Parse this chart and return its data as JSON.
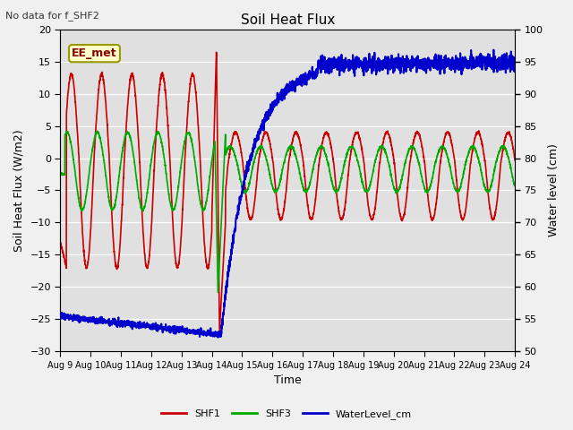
{
  "title": "Soil Heat Flux",
  "top_left_note": "No data for f_SHF2",
  "ylabel_left": "Soil Heat Flux (W/m2)",
  "ylabel_right": "Water level (cm)",
  "xlabel": "Time",
  "ylim_left": [
    -30,
    20
  ],
  "ylim_right": [
    50,
    100
  ],
  "x_tick_labels": [
    "Aug 9",
    "Aug 10",
    "Aug 11",
    "Aug 12",
    "Aug 13",
    "Aug 14",
    "Aug 15",
    "Aug 16",
    "Aug 17",
    "Aug 18",
    "Aug 19",
    "Aug 20",
    "Aug 21",
    "Aug 22",
    "Aug 23",
    "Aug 24"
  ],
  "fig_bg_color": "#f0f0f0",
  "plot_bg_color": "#e0e0e0",
  "shf1_color": "#cc0000",
  "shf3_color": "#00aa00",
  "water_color": "#0000cc",
  "annotation_text": "EE_met",
  "annotation_fc": "#ffffcc",
  "annotation_ec": "#999900",
  "annotation_tc": "#880000",
  "yticks_left": [
    -30,
    -25,
    -20,
    -15,
    -10,
    -5,
    0,
    5,
    10,
    15,
    20
  ],
  "yticks_right": [
    50,
    55,
    60,
    65,
    70,
    75,
    80,
    85,
    90,
    95,
    100
  ],
  "legend_entries": [
    "SHF1",
    "SHF3",
    "WaterLevel_cm"
  ],
  "grid_color": "#ffffff",
  "linewidth_shf": 1.2,
  "linewidth_water": 1.5
}
